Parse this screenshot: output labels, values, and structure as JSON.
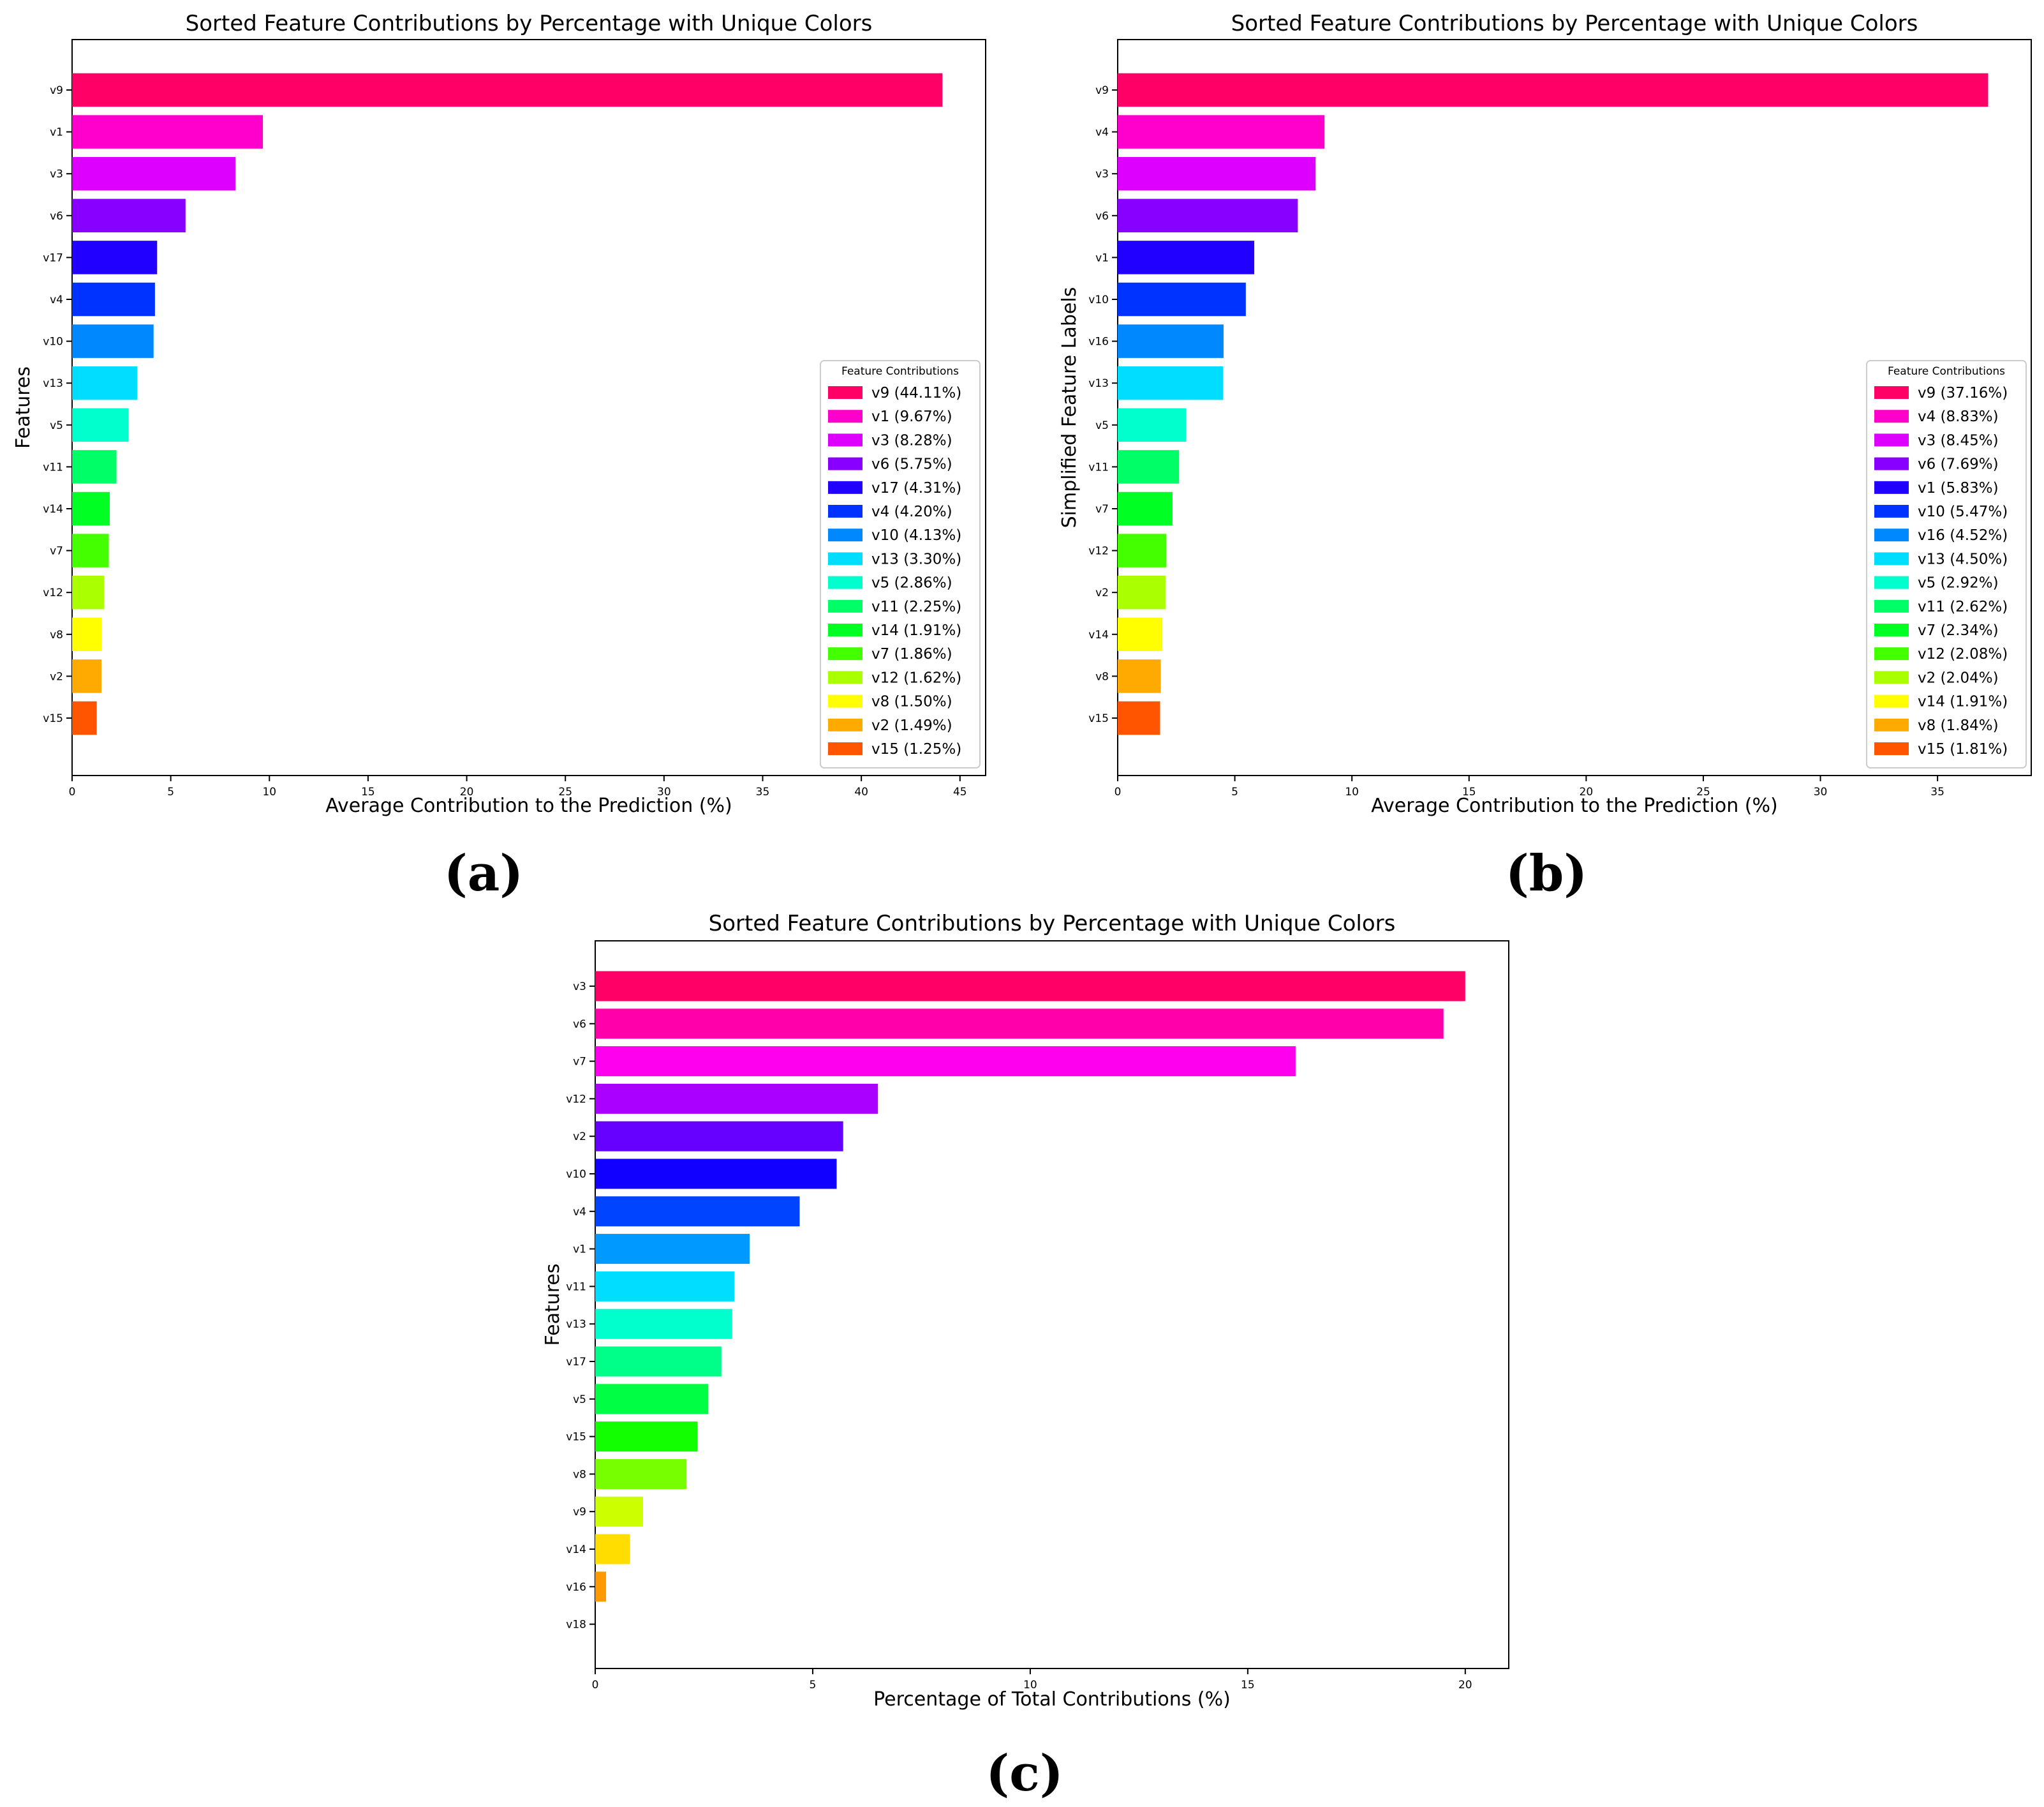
{
  "chart_data": [
    {
      "panel_label": "(a)",
      "type": "bar",
      "orientation": "horizontal",
      "title": "Sorted Feature Contributions by Percentage with Unique Colors",
      "xlabel": "Average Contribution to the Prediction (%)",
      "ylabel": "Features",
      "xlim": [
        0,
        46.3
      ],
      "xticks": [
        0,
        5,
        10,
        15,
        20,
        25,
        30,
        35,
        40,
        45
      ],
      "legend_title": "Feature Contributions",
      "legend_position": "center-right",
      "categories": [
        "v9",
        "v1",
        "v3",
        "v6",
        "v17",
        "v4",
        "v10",
        "v13",
        "v5",
        "v11",
        "v14",
        "v7",
        "v12",
        "v8",
        "v2",
        "v15"
      ],
      "values": [
        44.11,
        9.67,
        8.28,
        5.75,
        4.31,
        4.2,
        4.13,
        3.3,
        2.86,
        2.25,
        1.91,
        1.86,
        1.62,
        1.5,
        1.49,
        1.25
      ],
      "colors": [
        "#ff0066",
        "#ff00cc",
        "#dd00ff",
        "#8800ff",
        "#2200ff",
        "#0033ff",
        "#0088ff",
        "#00ddff",
        "#00ffcc",
        "#00ff66",
        "#00ff22",
        "#44ff00",
        "#aaff00",
        "#ffff00",
        "#ffaa00",
        "#ff5500"
      ],
      "legend_labels": [
        "v9 (44.11%)",
        "v1 (9.67%)",
        "v3 (8.28%)",
        "v6 (5.75%)",
        "v17 (4.31%)",
        "v4 (4.20%)",
        "v10 (4.13%)",
        "v13 (3.30%)",
        "v5 (2.86%)",
        "v11 (2.25%)",
        "v14 (1.91%)",
        "v7 (1.86%)",
        "v12 (1.62%)",
        "v8 (1.50%)",
        "v2 (1.49%)",
        "v15 (1.25%)"
      ]
    },
    {
      "panel_label": "(b)",
      "type": "bar",
      "orientation": "horizontal",
      "title": "Sorted Feature Contributions by Percentage with Unique Colors",
      "xlabel": "Average Contribution to the Prediction (%)",
      "ylabel": "Simplified Feature Labels",
      "xlim": [
        0,
        39.0
      ],
      "xticks": [
        0,
        5,
        10,
        15,
        20,
        25,
        30,
        35
      ],
      "legend_title": "Feature Contributions",
      "legend_position": "center-right",
      "categories": [
        "v9",
        "v4",
        "v3",
        "v6",
        "v1",
        "v10",
        "v16",
        "v13",
        "v5",
        "v11",
        "v7",
        "v12",
        "v2",
        "v14",
        "v8",
        "v15"
      ],
      "values": [
        37.16,
        8.83,
        8.45,
        7.69,
        5.83,
        5.47,
        4.52,
        4.5,
        2.92,
        2.62,
        2.34,
        2.08,
        2.04,
        1.91,
        1.84,
        1.81
      ],
      "colors": [
        "#ff0066",
        "#ff00cc",
        "#dd00ff",
        "#8800ff",
        "#2200ff",
        "#0033ff",
        "#0088ff",
        "#00ddff",
        "#00ffcc",
        "#00ff66",
        "#00ff22",
        "#44ff00",
        "#aaff00",
        "#ffff00",
        "#ffaa00",
        "#ff5500"
      ],
      "legend_labels": [
        "v9 (37.16%)",
        "v4 (8.83%)",
        "v3 (8.45%)",
        "v6 (7.69%)",
        "v1 (5.83%)",
        "v10 (5.47%)",
        "v16 (4.52%)",
        "v13 (4.50%)",
        "v5 (2.92%)",
        "v11 (2.62%)",
        "v7 (2.34%)",
        "v12 (2.08%)",
        "v2 (2.04%)",
        "v14 (1.91%)",
        "v8 (1.84%)",
        "v15 (1.81%)"
      ]
    },
    {
      "panel_label": "(c)",
      "type": "bar",
      "orientation": "horizontal",
      "title": "Sorted Feature Contributions by Percentage with Unique Colors",
      "xlabel": "Percentage of Total Contributions (%)",
      "ylabel": "Features",
      "xlim": [
        0,
        21.0
      ],
      "xticks": [
        0,
        5,
        10,
        15,
        20
      ],
      "categories": [
        "v3",
        "v6",
        "v7",
        "v12",
        "v2",
        "v10",
        "v4",
        "v1",
        "v11",
        "v13",
        "v17",
        "v5",
        "v15",
        "v8",
        "v9",
        "v14",
        "v16",
        "v18"
      ],
      "values": [
        20.0,
        19.5,
        16.1,
        6.5,
        5.7,
        5.55,
        4.7,
        3.55,
        3.2,
        3.15,
        2.9,
        2.6,
        2.35,
        2.1,
        1.1,
        0.8,
        0.25,
        0.0
      ],
      "colors": [
        "#ff0066",
        "#ff00aa",
        "#ff00ee",
        "#aa00ff",
        "#6600ff",
        "#1100ff",
        "#0044ff",
        "#0099ff",
        "#00ddff",
        "#00ffcc",
        "#00ff88",
        "#00ff44",
        "#11ff00",
        "#77ff00",
        "#ccff00",
        "#ffdd00",
        "#ff9900",
        "#ff5500"
      ]
    }
  ]
}
